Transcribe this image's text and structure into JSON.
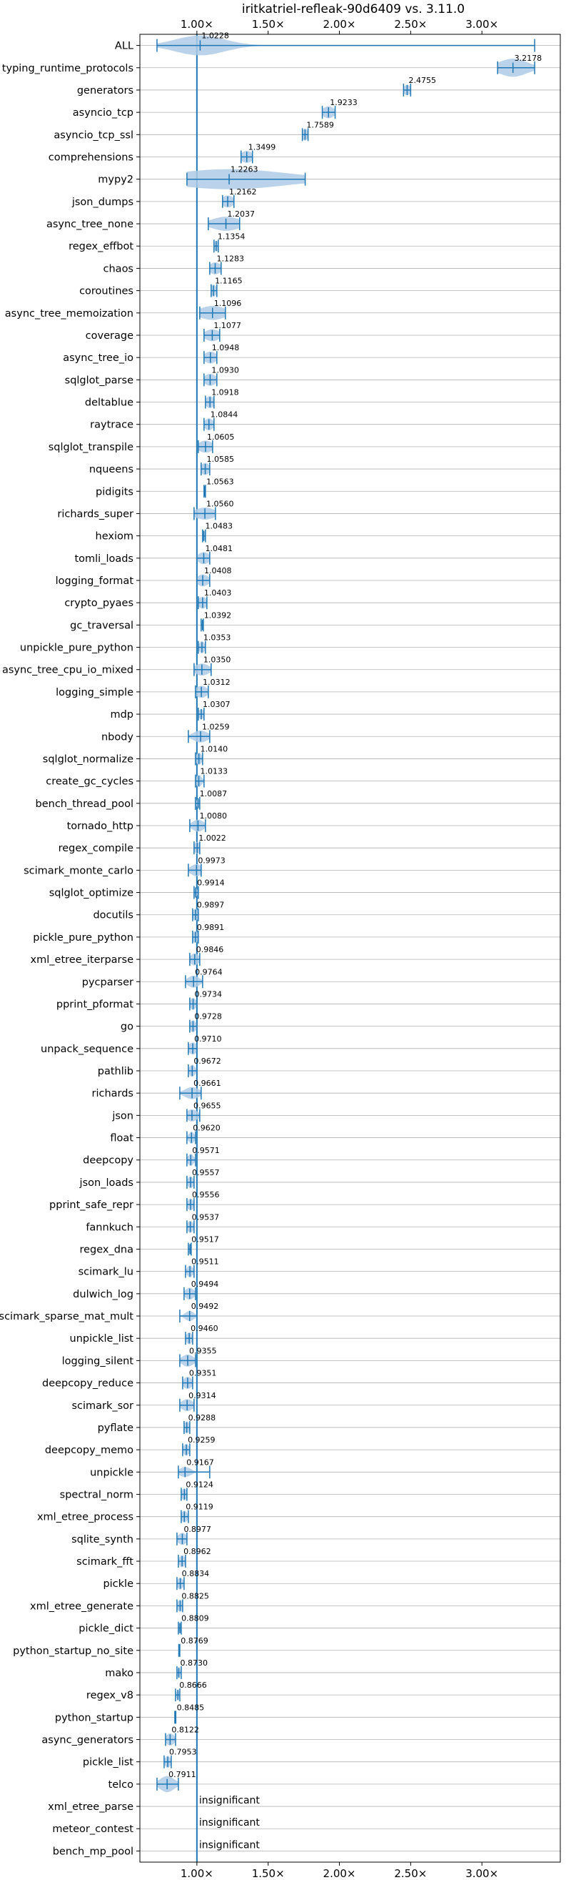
{
  "chart_data": {
    "type": "violin",
    "title": "iritkatriel-refleak-90d6409 vs. 3.11.0",
    "xlim": [
      0.6,
      3.55
    ],
    "xticks": [
      {
        "value": 1.0,
        "label": "1.00×"
      },
      {
        "value": 1.5,
        "label": "1.50×"
      },
      {
        "value": 2.0,
        "label": "2.00×"
      },
      {
        "value": 2.5,
        "label": "2.50×"
      },
      {
        "value": 3.0,
        "label": "3.00×"
      }
    ],
    "reference_line": 1.0,
    "grid": "horizontal",
    "color": "#1f77b4",
    "fill_color": "#aecbe6",
    "benchmarks": [
      {
        "name": "ALL",
        "value": 1.0228,
        "label": "1.0228",
        "min": 0.72,
        "max": 3.37,
        "spread": 0.17,
        "width": 1.0
      },
      {
        "name": "typing_runtime_protocols",
        "value": 3.2178,
        "label": "3.2178",
        "min": 3.11,
        "max": 3.37,
        "spread": 0.1,
        "width": 0.9
      },
      {
        "name": "generators",
        "value": 2.4755,
        "label": "2.4755",
        "min": 2.45,
        "max": 2.5,
        "spread": 0.03,
        "width": 0.5
      },
      {
        "name": "asyncio_tcp",
        "value": 1.9233,
        "label": "1.9233",
        "min": 1.88,
        "max": 1.97,
        "spread": 0.04,
        "width": 0.6
      },
      {
        "name": "asyncio_tcp_ssl",
        "value": 1.7589,
        "label": "1.7589",
        "min": 1.74,
        "max": 1.78,
        "spread": 0.02,
        "width": 0.6
      },
      {
        "name": "comprehensions",
        "value": 1.3499,
        "label": "1.3499",
        "min": 1.31,
        "max": 1.39,
        "spread": 0.04,
        "width": 0.6
      },
      {
        "name": "mypy2",
        "value": 1.2263,
        "label": "1.2263",
        "min": 0.93,
        "max": 1.76,
        "spread": 0.4,
        "width": 1.0
      },
      {
        "name": "json_dumps",
        "value": 1.2162,
        "label": "1.2162",
        "min": 1.18,
        "max": 1.26,
        "spread": 0.04,
        "width": 0.6
      },
      {
        "name": "async_tree_none",
        "value": 1.2037,
        "label": "1.2037",
        "min": 1.08,
        "max": 1.3,
        "spread": 0.1,
        "width": 0.7
      },
      {
        "name": "regex_effbot",
        "value": 1.1354,
        "label": "1.1354",
        "min": 1.12,
        "max": 1.15,
        "spread": 0.02,
        "width": 0.5
      },
      {
        "name": "chaos",
        "value": 1.1283,
        "label": "1.1283",
        "min": 1.09,
        "max": 1.17,
        "spread": 0.04,
        "width": 0.6
      },
      {
        "name": "coroutines",
        "value": 1.1165,
        "label": "1.1165",
        "min": 1.1,
        "max": 1.14,
        "spread": 0.02,
        "width": 0.6
      },
      {
        "name": "async_tree_memoization",
        "value": 1.1096,
        "label": "1.1096",
        "min": 1.02,
        "max": 1.2,
        "spread": 0.09,
        "width": 0.7
      },
      {
        "name": "coverage",
        "value": 1.1077,
        "label": "1.1077",
        "min": 1.05,
        "max": 1.16,
        "spread": 0.05,
        "width": 0.6
      },
      {
        "name": "async_tree_io",
        "value": 1.0948,
        "label": "1.0948",
        "min": 1.05,
        "max": 1.14,
        "spread": 0.04,
        "width": 0.6
      },
      {
        "name": "sqlglot_parse",
        "value": 1.093,
        "label": "1.0930",
        "min": 1.05,
        "max": 1.14,
        "spread": 0.04,
        "width": 0.6
      },
      {
        "name": "deltablue",
        "value": 1.0918,
        "label": "1.0918",
        "min": 1.06,
        "max": 1.12,
        "spread": 0.03,
        "width": 0.6
      },
      {
        "name": "raytrace",
        "value": 1.0844,
        "label": "1.0844",
        "min": 1.05,
        "max": 1.12,
        "spread": 0.03,
        "width": 0.6
      },
      {
        "name": "sqlglot_transpile",
        "value": 1.0605,
        "label": "1.0605",
        "min": 1.01,
        "max": 1.11,
        "spread": 0.05,
        "width": 0.6
      },
      {
        "name": "nqueens",
        "value": 1.0585,
        "label": "1.0585",
        "min": 1.03,
        "max": 1.09,
        "spread": 0.03,
        "width": 0.6
      },
      {
        "name": "pidigits",
        "value": 1.0563,
        "label": "1.0563",
        "min": 1.05,
        "max": 1.06,
        "spread": 0.005,
        "width": 0.4
      },
      {
        "name": "richards_super",
        "value": 1.056,
        "label": "1.0560",
        "min": 0.98,
        "max": 1.13,
        "spread": 0.07,
        "width": 0.6
      },
      {
        "name": "hexiom",
        "value": 1.0483,
        "label": "1.0483",
        "min": 1.04,
        "max": 1.06,
        "spread": 0.01,
        "width": 0.5
      },
      {
        "name": "tomli_loads",
        "value": 1.0481,
        "label": "1.0481",
        "min": 1.0,
        "max": 1.09,
        "spread": 0.04,
        "width": 0.6
      },
      {
        "name": "logging_format",
        "value": 1.0408,
        "label": "1.0408",
        "min": 1.0,
        "max": 1.09,
        "spread": 0.04,
        "width": 0.6
      },
      {
        "name": "crypto_pyaes",
        "value": 1.0403,
        "label": "1.0403",
        "min": 1.01,
        "max": 1.07,
        "spread": 0.03,
        "width": 0.6
      },
      {
        "name": "gc_traversal",
        "value": 1.0392,
        "label": "1.0392",
        "min": 1.03,
        "max": 1.045,
        "spread": 0.005,
        "width": 0.4
      },
      {
        "name": "unpickle_pure_python",
        "value": 1.0353,
        "label": "1.0353",
        "min": 1.01,
        "max": 1.06,
        "spread": 0.02,
        "width": 0.6
      },
      {
        "name": "async_tree_cpu_io_mixed",
        "value": 1.035,
        "label": "1.0350",
        "min": 0.98,
        "max": 1.1,
        "spread": 0.05,
        "width": 0.6
      },
      {
        "name": "logging_simple",
        "value": 1.0312,
        "label": "1.0312",
        "min": 0.99,
        "max": 1.08,
        "spread": 0.04,
        "width": 0.6
      },
      {
        "name": "mdp",
        "value": 1.0307,
        "label": "1.0307",
        "min": 1.01,
        "max": 1.05,
        "spread": 0.02,
        "width": 0.5
      },
      {
        "name": "nbody",
        "value": 1.0259,
        "label": "1.0259",
        "min": 0.94,
        "max": 1.09,
        "spread": 0.05,
        "width": 0.6
      },
      {
        "name": "sqlglot_normalize",
        "value": 1.014,
        "label": "1.0140",
        "min": 0.99,
        "max": 1.04,
        "spread": 0.02,
        "width": 0.6
      },
      {
        "name": "create_gc_cycles",
        "value": 1.0133,
        "label": "1.0133",
        "min": 0.99,
        "max": 1.05,
        "spread": 0.02,
        "width": 0.6
      },
      {
        "name": "bench_thread_pool",
        "value": 1.0087,
        "label": "1.0087",
        "min": 0.99,
        "max": 1.02,
        "spread": 0.01,
        "width": 0.5
      },
      {
        "name": "tornado_http",
        "value": 1.008,
        "label": "1.0080",
        "min": 0.95,
        "max": 1.06,
        "spread": 0.04,
        "width": 0.6
      },
      {
        "name": "regex_compile",
        "value": 1.0022,
        "label": "1.0022",
        "min": 0.98,
        "max": 1.02,
        "spread": 0.02,
        "width": 0.6
      },
      {
        "name": "scimark_monte_carlo",
        "value": 0.9973,
        "label": "0.9973",
        "min": 0.94,
        "max": 1.03,
        "spread": 0.04,
        "width": 0.6
      },
      {
        "name": "sqlglot_optimize",
        "value": 0.9914,
        "label": "0.9914",
        "min": 0.98,
        "max": 1.01,
        "spread": 0.01,
        "width": 0.5
      },
      {
        "name": "docutils",
        "value": 0.9897,
        "label": "0.9897",
        "min": 0.97,
        "max": 1.01,
        "spread": 0.02,
        "width": 0.6
      },
      {
        "name": "pickle_pure_python",
        "value": 0.9891,
        "label": "0.9891",
        "min": 0.97,
        "max": 1.01,
        "spread": 0.02,
        "width": 0.6
      },
      {
        "name": "xml_etree_iterparse",
        "value": 0.9846,
        "label": "0.9846",
        "min": 0.95,
        "max": 1.02,
        "spread": 0.03,
        "width": 0.6
      },
      {
        "name": "pycparser",
        "value": 0.9764,
        "label": "0.9764",
        "min": 0.92,
        "max": 1.04,
        "spread": 0.04,
        "width": 0.6
      },
      {
        "name": "pprint_pformat",
        "value": 0.9734,
        "label": "0.9734",
        "min": 0.95,
        "max": 1.0,
        "spread": 0.02,
        "width": 0.6
      },
      {
        "name": "go",
        "value": 0.9728,
        "label": "0.9728",
        "min": 0.95,
        "max": 1.0,
        "spread": 0.02,
        "width": 0.6
      },
      {
        "name": "unpack_sequence",
        "value": 0.971,
        "label": "0.9710",
        "min": 0.94,
        "max": 1.0,
        "spread": 0.03,
        "width": 0.6
      },
      {
        "name": "pathlib",
        "value": 0.9672,
        "label": "0.9672",
        "min": 0.94,
        "max": 1.0,
        "spread": 0.02,
        "width": 0.6
      },
      {
        "name": "richards",
        "value": 0.9661,
        "label": "0.9661",
        "min": 0.88,
        "max": 1.03,
        "spread": 0.05,
        "width": 0.6
      },
      {
        "name": "json",
        "value": 0.9655,
        "label": "0.9655",
        "min": 0.93,
        "max": 1.02,
        "spread": 0.04,
        "width": 0.6
      },
      {
        "name": "float",
        "value": 0.962,
        "label": "0.9620",
        "min": 0.93,
        "max": 0.99,
        "spread": 0.02,
        "width": 0.6
      },
      {
        "name": "deepcopy",
        "value": 0.9571,
        "label": "0.9571",
        "min": 0.93,
        "max": 0.99,
        "spread": 0.02,
        "width": 0.6
      },
      {
        "name": "json_loads",
        "value": 0.9557,
        "label": "0.9557",
        "min": 0.93,
        "max": 0.98,
        "spread": 0.02,
        "width": 0.6
      },
      {
        "name": "pprint_safe_repr",
        "value": 0.9556,
        "label": "0.9556",
        "min": 0.93,
        "max": 0.98,
        "spread": 0.02,
        "width": 0.6
      },
      {
        "name": "fannkuch",
        "value": 0.9537,
        "label": "0.9537",
        "min": 0.93,
        "max": 0.98,
        "spread": 0.02,
        "width": 0.6
      },
      {
        "name": "regex_dna",
        "value": 0.9517,
        "label": "0.9517",
        "min": 0.94,
        "max": 0.96,
        "spread": 0.01,
        "width": 0.5
      },
      {
        "name": "scimark_lu",
        "value": 0.9511,
        "label": "0.9511",
        "min": 0.92,
        "max": 0.98,
        "spread": 0.02,
        "width": 0.6
      },
      {
        "name": "dulwich_log",
        "value": 0.9494,
        "label": "0.9494",
        "min": 0.91,
        "max": 0.99,
        "spread": 0.03,
        "width": 0.6
      },
      {
        "name": "scimark_sparse_mat_mult",
        "value": 0.9492,
        "label": "0.9492",
        "min": 0.88,
        "max": 1.0,
        "spread": 0.03,
        "width": 0.5
      },
      {
        "name": "unpickle_list",
        "value": 0.946,
        "label": "0.9460",
        "min": 0.92,
        "max": 0.97,
        "spread": 0.02,
        "width": 0.6
      },
      {
        "name": "logging_silent",
        "value": 0.9355,
        "label": "0.9355",
        "min": 0.88,
        "max": 0.99,
        "spread": 0.04,
        "width": 0.6
      },
      {
        "name": "deepcopy_reduce",
        "value": 0.9351,
        "label": "0.9351",
        "min": 0.9,
        "max": 0.97,
        "spread": 0.03,
        "width": 0.6
      },
      {
        "name": "scimark_sor",
        "value": 0.9314,
        "label": "0.9314",
        "min": 0.88,
        "max": 0.98,
        "spread": 0.04,
        "width": 0.6
      },
      {
        "name": "pyflate",
        "value": 0.9288,
        "label": "0.9288",
        "min": 0.91,
        "max": 0.95,
        "spread": 0.02,
        "width": 0.6
      },
      {
        "name": "deepcopy_memo",
        "value": 0.9259,
        "label": "0.9259",
        "min": 0.9,
        "max": 0.95,
        "spread": 0.02,
        "width": 0.6
      },
      {
        "name": "unpickle",
        "value": 0.9167,
        "label": "0.9167",
        "min": 0.87,
        "max": 1.09,
        "spread": 0.04,
        "width": 0.5
      },
      {
        "name": "spectral_norm",
        "value": 0.9124,
        "label": "0.9124",
        "min": 0.89,
        "max": 0.93,
        "spread": 0.02,
        "width": 0.6
      },
      {
        "name": "xml_etree_process",
        "value": 0.9119,
        "label": "0.9119",
        "min": 0.89,
        "max": 0.94,
        "spread": 0.02,
        "width": 0.6
      },
      {
        "name": "sqlite_synth",
        "value": 0.8977,
        "label": "0.8977",
        "min": 0.86,
        "max": 0.93,
        "spread": 0.03,
        "width": 0.6
      },
      {
        "name": "scimark_fft",
        "value": 0.8962,
        "label": "0.8962",
        "min": 0.87,
        "max": 0.92,
        "spread": 0.02,
        "width": 0.6
      },
      {
        "name": "pickle",
        "value": 0.8834,
        "label": "0.8834",
        "min": 0.86,
        "max": 0.91,
        "spread": 0.02,
        "width": 0.6
      },
      {
        "name": "xml_etree_generate",
        "value": 0.8825,
        "label": "0.8825",
        "min": 0.86,
        "max": 0.9,
        "spread": 0.02,
        "width": 0.6
      },
      {
        "name": "pickle_dict",
        "value": 0.8809,
        "label": "0.8809",
        "min": 0.87,
        "max": 0.89,
        "spread": 0.01,
        "width": 0.5
      },
      {
        "name": "python_startup_no_site",
        "value": 0.8769,
        "label": "0.8769",
        "min": 0.873,
        "max": 0.88,
        "spread": 0.003,
        "width": 0.4
      },
      {
        "name": "mako",
        "value": 0.873,
        "label": "0.8730",
        "min": 0.86,
        "max": 0.89,
        "spread": 0.01,
        "width": 0.5
      },
      {
        "name": "regex_v8",
        "value": 0.8666,
        "label": "0.8666",
        "min": 0.85,
        "max": 0.88,
        "spread": 0.01,
        "width": 0.5
      },
      {
        "name": "python_startup",
        "value": 0.8485,
        "label": "0.8485",
        "min": 0.845,
        "max": 0.852,
        "spread": 0.003,
        "width": 0.4
      },
      {
        "name": "async_generators",
        "value": 0.8122,
        "label": "0.8122",
        "min": 0.78,
        "max": 0.85,
        "spread": 0.03,
        "width": 0.6
      },
      {
        "name": "pickle_list",
        "value": 0.7953,
        "label": "0.7953",
        "min": 0.77,
        "max": 0.82,
        "spread": 0.02,
        "width": 0.6
      },
      {
        "name": "telco",
        "value": 0.7911,
        "label": "0.7911",
        "min": 0.72,
        "max": 0.87,
        "spread": 0.05,
        "width": 0.8
      },
      {
        "name": "xml_etree_parse",
        "label": "insignificant",
        "insignificant": true
      },
      {
        "name": "meteor_contest",
        "label": "insignificant",
        "insignificant": true
      },
      {
        "name": "bench_mp_pool",
        "label": "insignificant",
        "insignificant": true
      }
    ]
  }
}
